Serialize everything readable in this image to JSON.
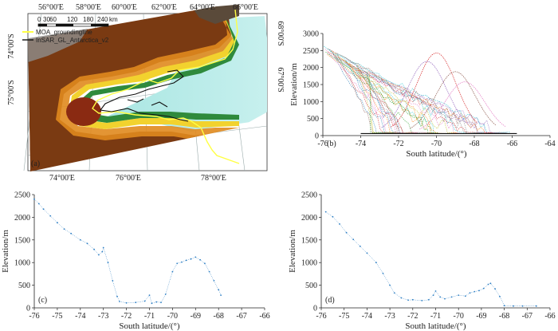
{
  "map": {
    "panel_label": "(a)",
    "top_lon_labels": [
      "56°00'E",
      "58°00'E",
      "60°00'E",
      "62°00'E",
      "64°00'E",
      "66°00'E"
    ],
    "bottom_lon_labels": [
      "74°00'E",
      "76°00'E",
      "78°00'E"
    ],
    "left_lat_labels": [
      "74°00'S",
      "75°00'S"
    ],
    "right_lat_labels": [
      "68°00'S",
      "67°00'S"
    ],
    "scale_labels": [
      "0",
      "30",
      "60",
      "120",
      "180",
      "240",
      "km"
    ],
    "legend": [
      {
        "label": "MOA_groundingline",
        "color": "#ffff44"
      },
      {
        "label": "InSAR_GL_Antarctica_v2",
        "color": "#111111"
      }
    ]
  },
  "colors": {
    "profile_c": "#2e7fc4",
    "profile_d": "#2e7fc4",
    "multi": [
      "#1f77b4",
      "#ff7f0e",
      "#2ca02c",
      "#d62728",
      "#9467bd",
      "#8c564b",
      "#e377c2",
      "#17becf",
      "#bcbd22",
      "#7f7f7f"
    ]
  },
  "chart_data": [
    {
      "type": "line",
      "panel": "(b)",
      "xlabel": "South latitude/(°)",
      "ylabel": "Elevation/m",
      "xlim": [
        -76,
        -64
      ],
      "ylim": [
        0,
        3000
      ],
      "xticks": [
        -76,
        -74,
        -72,
        -70,
        -68,
        -66,
        -64
      ],
      "yticks": [
        0,
        500,
        1000,
        1500,
        2000,
        2500,
        3000
      ],
      "series_note": "many overlapping track profiles",
      "envelope": {
        "start": [
          -76,
          2500
        ],
        "shelf_elevation": 60,
        "shelf_end": -65.7
      },
      "peak_profiles": [
        {
          "lat": -70,
          "elev": 2350
        },
        {
          "lat": -70.5,
          "elev": 2100
        },
        {
          "lat": -69,
          "elev": 1800
        },
        {
          "lat": -68.5,
          "elev": 1500
        }
      ]
    },
    {
      "type": "scatter",
      "panel": "(c)",
      "xlabel": "South latitude/(°)",
      "ylabel": "Elevation/m",
      "xlim": [
        -76,
        -66
      ],
      "ylim": [
        0,
        2500
      ],
      "xticks": [
        -76,
        -75,
        -74,
        -73,
        -72,
        -71,
        -70,
        -69,
        -68,
        -67,
        -66
      ],
      "yticks": [
        0,
        500,
        1000,
        1500,
        2000,
        2500
      ],
      "x": [
        -76.0,
        -75.8,
        -75.6,
        -75.3,
        -75.0,
        -74.7,
        -74.4,
        -74.0,
        -73.7,
        -73.4,
        -73.2,
        -73.05,
        -73.0,
        -72.8,
        -72.6,
        -72.4,
        -72.3,
        -72.0,
        -71.6,
        -71.2,
        -71.0,
        -70.9,
        -70.7,
        -70.5,
        -70.3,
        -70.0,
        -69.8,
        -69.6,
        -69.4,
        -69.2,
        -69.0,
        -68.8,
        -68.6,
        -68.4,
        -68.2,
        -68.0,
        -67.9
      ],
      "y": [
        2400,
        2300,
        2180,
        2030,
        1880,
        1740,
        1640,
        1500,
        1420,
        1290,
        1170,
        1240,
        1330,
        1000,
        600,
        250,
        140,
        110,
        120,
        150,
        280,
        100,
        130,
        120,
        300,
        800,
        980,
        1010,
        1050,
        1080,
        1120,
        1060,
        980,
        800,
        600,
        400,
        280
      ]
    },
    {
      "type": "scatter",
      "panel": "(d)",
      "xlabel": "South latitude/(°)",
      "ylabel": "Elevation/m",
      "xlim": [
        -76,
        -66
      ],
      "ylim": [
        0,
        2500
      ],
      "xticks": [
        -76,
        -75,
        -74,
        -73,
        -72,
        -71,
        -70,
        -69,
        -68,
        -67,
        -66
      ],
      "yticks": [
        0,
        500,
        1000,
        1500,
        2000,
        2500
      ],
      "x": [
        -75.8,
        -75.5,
        -75.2,
        -74.9,
        -74.6,
        -74.3,
        -74.0,
        -73.6,
        -73.3,
        -73.0,
        -72.8,
        -72.5,
        -72.2,
        -72.0,
        -71.6,
        -71.3,
        -71.1,
        -71.0,
        -70.8,
        -70.6,
        -70.3,
        -70.0,
        -69.7,
        -69.5,
        -69.3,
        -69.1,
        -68.9,
        -68.7,
        -68.6,
        -68.4,
        -68.2,
        -68.0,
        -67.6,
        -67.2,
        -66.6
      ],
      "y": [
        2120,
        2010,
        1850,
        1660,
        1510,
        1360,
        1210,
        1000,
        760,
        500,
        330,
        220,
        170,
        180,
        160,
        180,
        280,
        370,
        240,
        200,
        240,
        280,
        260,
        330,
        360,
        380,
        430,
        520,
        540,
        420,
        250,
        50,
        40,
        40,
        40
      ]
    }
  ]
}
